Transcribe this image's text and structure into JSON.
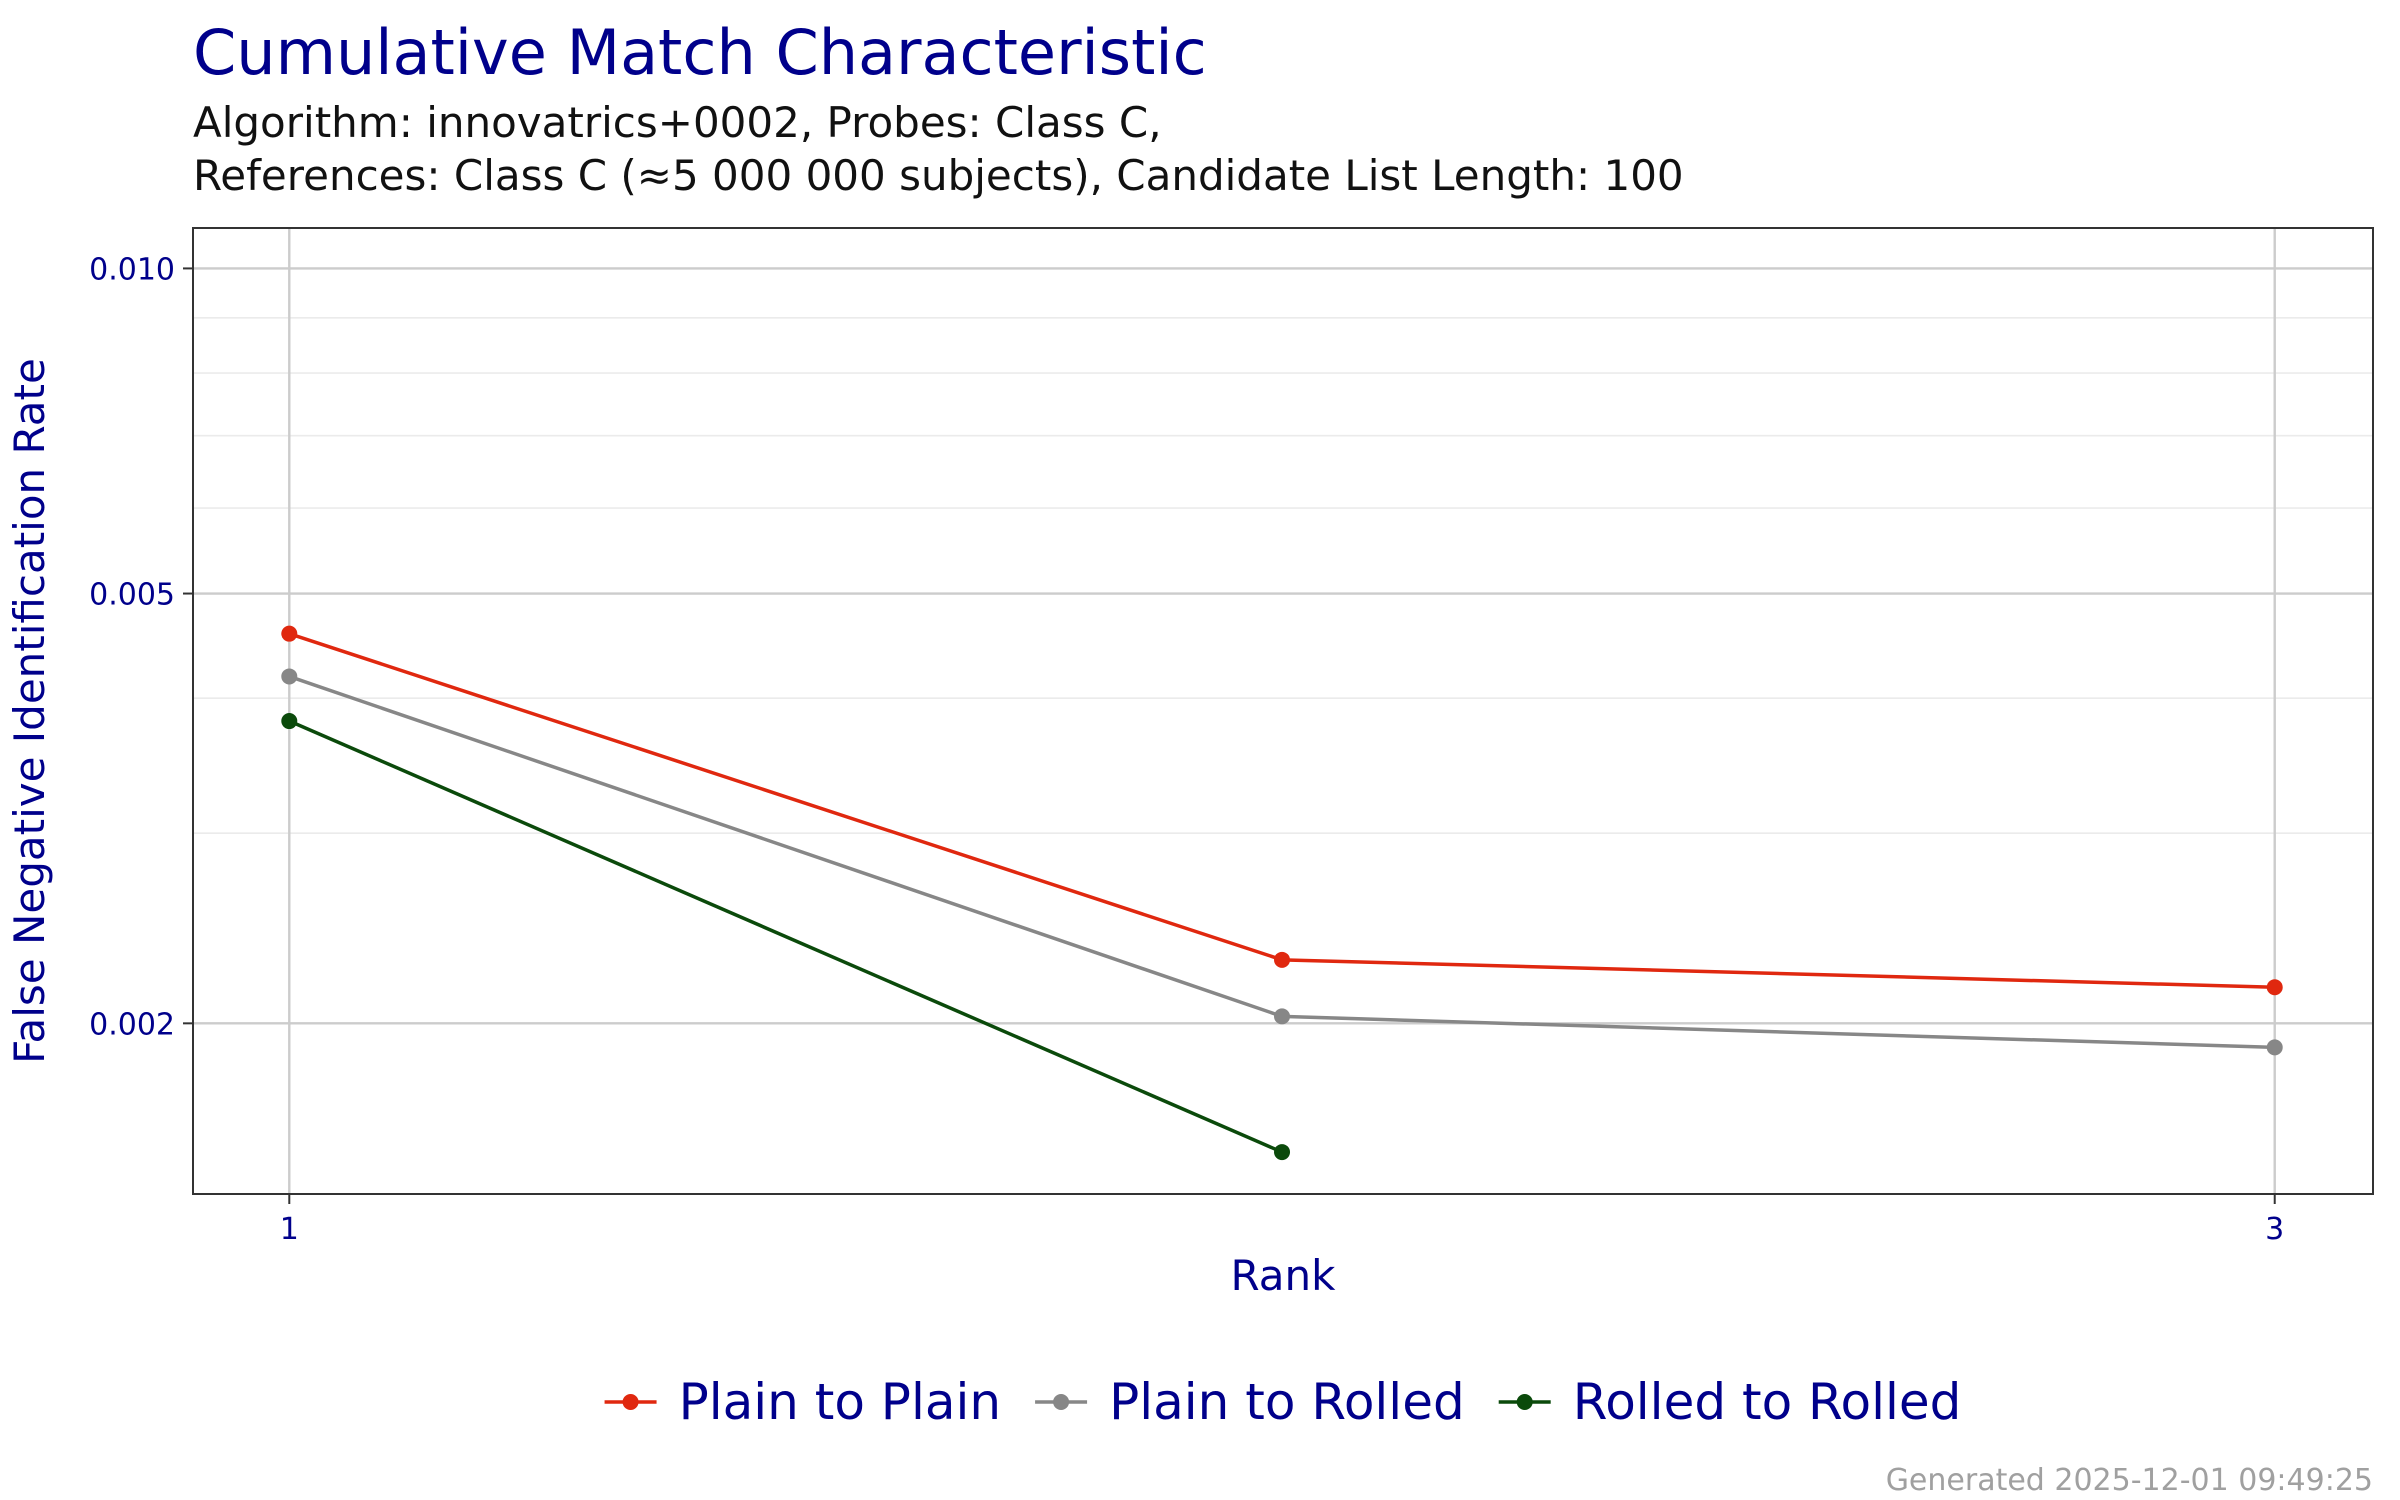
{
  "chart_data": {
    "type": "line",
    "title": "Cumulative Match Characteristic",
    "subtitle": [
      "Algorithm: innovatrics+0002, Probes: Class C,",
      "References: Class C (≈5 000 000 subjects), Candidate List Length: 100"
    ],
    "x_label": "Rank",
    "y_label": "False Negative Identification Rate",
    "x": [
      1,
      2,
      3
    ],
    "xlim": [
      0.903,
      3.099
    ],
    "xticks": [
      1,
      3
    ],
    "ylim": [
      0.00139,
      0.0109
    ],
    "yticks": [
      0.002,
      0.005,
      {
        "value": 0.01,
        "label": "0.010"
      }
    ],
    "log_y": true,
    "grid": true,
    "legend_position": "bottom",
    "series": [
      {
        "name": "Plain to Plain",
        "color": "#e0280f",
        "values": [
          0.00459,
          0.00229,
          0.00216
        ]
      },
      {
        "name": "Plain to Rolled",
        "color": "#878787",
        "values": [
          0.00419,
          0.00203,
          0.0019
        ]
      },
      {
        "name": "Rolled to Rolled",
        "color": "#0b4a0b",
        "values": [
          0.00381,
          0.00152,
          null
        ]
      }
    ],
    "footer": "Generated 2025-12-01 09:49:25"
  }
}
